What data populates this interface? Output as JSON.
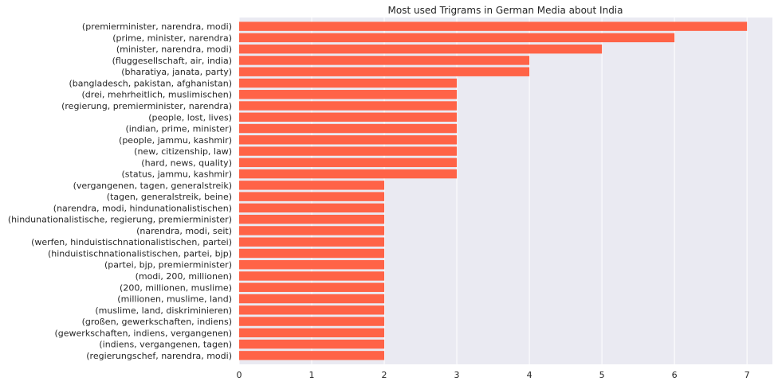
{
  "chart_data": {
    "type": "bar",
    "orientation": "horizontal",
    "title": "Most used Trigrams in German Media about India",
    "xlabel": "",
    "ylabel": "",
    "xlim": [
      0,
      7.35
    ],
    "xticks": [
      "0",
      "1",
      "2",
      "3",
      "4",
      "5",
      "6",
      "7"
    ],
    "grid": true,
    "bar_color": "#ff6347",
    "background_color": "#eaeaf2",
    "categories": [
      "(premierminister, narendra, modi)",
      "(prime, minister, narendra)",
      "(minister, narendra, modi)",
      "(fluggesellschaft, air, india)",
      "(bharatiya, janata, party)",
      "(bangladesch, pakistan, afghanistan)",
      "(drei, mehrheitlich, muslimischen)",
      "(regierung, premierminister, narendra)",
      "(people, lost, lives)",
      "(indian, prime, minister)",
      "(people, jammu, kashmir)",
      "(new, citizenship, law)",
      "(hard, news, quality)",
      "(status, jammu, kashmir)",
      "(vergangenen, tagen, generalstreik)",
      "(tagen, generalstreik, beine)",
      "(narendra, modi, hindunationalistischen)",
      "(hindunationalistische, regierung, premierminister)",
      "(narendra, modi, seit)",
      "(werfen, hinduistischnationalistischen, partei)",
      "(hinduistischnationalistischen, partei, bjp)",
      "(partei, bjp, premierminister)",
      "(modi, 200, millionen)",
      "(200, millionen, muslime)",
      "(millionen, muslime, land)",
      "(muslime, land, diskriminieren)",
      "(großen, gewerkschaften, indiens)",
      "(gewerkschaften, indiens, vergangenen)",
      "(indiens, vergangenen, tagen)",
      "(regierungschef, narendra, modi)"
    ],
    "values": [
      7,
      6,
      5,
      4,
      4,
      3,
      3,
      3,
      3,
      3,
      3,
      3,
      3,
      3,
      2,
      2,
      2,
      2,
      2,
      2,
      2,
      2,
      2,
      2,
      2,
      2,
      2,
      2,
      2,
      2
    ]
  }
}
